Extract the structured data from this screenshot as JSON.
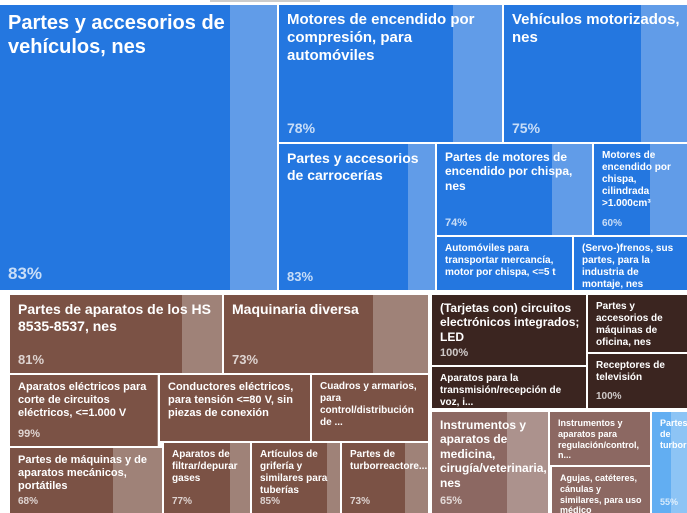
{
  "chart_data": {
    "type": "treemap",
    "tiles": [
      {
        "name": "Partes y accesorios de vehículos, nes",
        "color": "#2477e0",
        "share": 83,
        "share_label": "83%"
      },
      {
        "name": "Motores de encendido por compresión, para automóviles",
        "color": "#2477e0",
        "share": 78,
        "share_label": "78%"
      },
      {
        "name": "Vehículos motorizados, nes",
        "color": "#2477e0",
        "share": 75,
        "share_label": "75%"
      },
      {
        "name": "Partes y accesorios de carrocerías",
        "color": "#2477e0",
        "share": 83,
        "share_label": "83%"
      },
      {
        "name": "Partes de motores de encendido por chispa, nes",
        "color": "#2477e0",
        "share": 74,
        "share_label": "74%"
      },
      {
        "name": "Motores de encendido por chispa, cilindrada >1.000cm³",
        "color": "#2477e0",
        "share": 60,
        "share_label": "60%"
      },
      {
        "name": "Automóviles para transportar mercancía, motor por chispa, <=5 t",
        "color": "#2477e0"
      },
      {
        "name": "(Servo-)frenos, sus partes, para la industria de montaje, nes",
        "color": "#2477e0"
      },
      {
        "name": "Partes de aparatos de los HS 8535-8537, nes",
        "color": "#7b5245",
        "share": 81,
        "share_label": "81%"
      },
      {
        "name": "Maquinaria diversa",
        "color": "#7b5245",
        "share": 73,
        "share_label": "73%"
      },
      {
        "name": "Aparatos eléctricos para corte de circuitos eléctricos, <=1.000 V",
        "color": "#7b5245",
        "share": 99,
        "share_label": "99%"
      },
      {
        "name": "Conductores eléctricos, para tensión <=80 V, sin piezas de conexión",
        "color": "#7b5245"
      },
      {
        "name": "Cuadros y armarios, para control/distribución de ...",
        "color": "#7b5245"
      },
      {
        "name": "Partes de máquinas y de aparatos mecánicos, portátiles",
        "color": "#7b5245",
        "share": 68,
        "share_label": "68%"
      },
      {
        "name": "Aparatos de filtrar/depurar gases",
        "color": "#7b5245",
        "share": 77,
        "share_label": "77%"
      },
      {
        "name": "Artículos de grifería y similares para tuberías",
        "color": "#7b5245",
        "share": 85,
        "share_label": "85%"
      },
      {
        "name": "Partes de turborreactore...",
        "color": "#7b5245",
        "share": 73,
        "share_label": "73%"
      },
      {
        "name": "(Tarjetas con) circuitos electrónicos integrados; LED",
        "color": "#3b2520",
        "share": 100,
        "share_label": "100%"
      },
      {
        "name": "Aparatos para la transmisión/recepción de voz, i...",
        "color": "#3b2520"
      },
      {
        "name": "Partes y accesorios de máquinas de oficina, nes",
        "color": "#3b2520"
      },
      {
        "name": "Receptores de televisión",
        "color": "#3b2520",
        "share": 100,
        "share_label": "100%"
      },
      {
        "name": "Instrumentos y aparatos de medicina, cirugía/veterinaria, nes",
        "color": "#8c6862",
        "share": 65,
        "share_label": "65%"
      },
      {
        "name": "Instrumentos y aparatos para regulación/control, n...",
        "color": "#8c6862"
      },
      {
        "name": "Agujas, catéteres, cánulas y similares, para uso médico",
        "color": "#8c6862"
      },
      {
        "name": "Partes de turbor",
        "color": "#62aef2",
        "share": 55,
        "share_label": "55%"
      }
    ]
  }
}
